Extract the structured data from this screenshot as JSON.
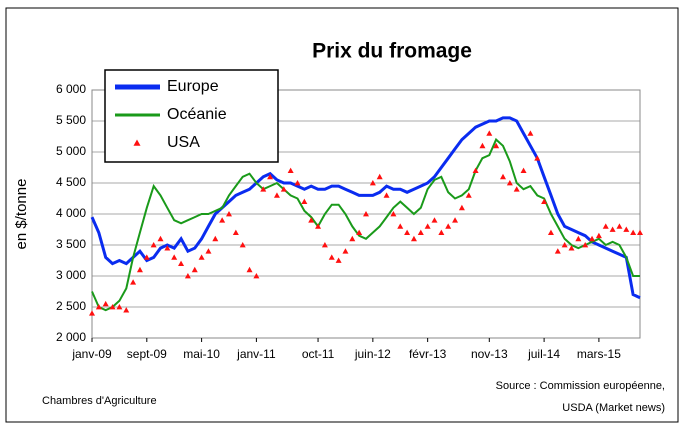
{
  "chart_data": {
    "type": "line",
    "title": "Prix du fromage",
    "ylabel": "en $/tonne",
    "footer_left": "Chambres d'Agriculture",
    "source": [
      "Source : Commission européenne,",
      "USDA (Market news)"
    ],
    "categories": [
      "janv-09",
      null,
      null,
      null,
      null,
      null,
      null,
      null,
      "sept-09",
      null,
      null,
      null,
      null,
      null,
      null,
      null,
      "mai-10",
      null,
      null,
      null,
      null,
      null,
      null,
      null,
      "janv-11",
      null,
      null,
      null,
      null,
      null,
      null,
      null,
      null,
      "oct-11",
      null,
      null,
      null,
      null,
      null,
      null,
      null,
      "juin-12",
      null,
      null,
      null,
      null,
      null,
      null,
      null,
      "févr-13",
      null,
      null,
      null,
      null,
      null,
      null,
      null,
      null,
      "nov-13",
      null,
      null,
      null,
      null,
      null,
      null,
      null,
      "juil-14",
      null,
      null,
      null,
      null,
      null,
      null,
      null,
      "mars-15",
      null,
      null,
      null,
      null,
      null,
      null
    ],
    "series": [
      {
        "name": "Europe",
        "color": "#0a2cf0",
        "style": "line",
        "values": [
          3950,
          3700,
          3300,
          3200,
          3250,
          3200,
          3300,
          3400,
          3250,
          3300,
          3450,
          3500,
          3450,
          3600,
          3400,
          3450,
          3600,
          3800,
          4000,
          4100,
          4200,
          4300,
          4350,
          4400,
          4500,
          4600,
          4650,
          4550,
          4500,
          4500,
          4450,
          4400,
          4450,
          4400,
          4400,
          4450,
          4450,
          4400,
          4350,
          4300,
          4300,
          4300,
          4350,
          4450,
          4400,
          4400,
          4350,
          4400,
          4450,
          4500,
          4600,
          4750,
          4900,
          5050,
          5200,
          5300,
          5400,
          5450,
          5500,
          5500,
          5550,
          5550,
          5500,
          5300,
          5100,
          4900,
          4600,
          4300,
          4000,
          3800,
          3750,
          3700,
          3650,
          3550,
          3500,
          3450,
          3400,
          3350,
          3300,
          2700,
          2650
        ]
      },
      {
        "name": "Océanie",
        "color": "#1a9a1a",
        "style": "line",
        "values": [
          2750,
          2500,
          2450,
          2500,
          2600,
          2800,
          3300,
          3700,
          4100,
          4450,
          4300,
          4100,
          3900,
          3850,
          3900,
          3950,
          4000,
          4000,
          4050,
          4100,
          4300,
          4450,
          4600,
          4650,
          4500,
          4400,
          4450,
          4500,
          4400,
          4300,
          4250,
          4050,
          3950,
          3800,
          4000,
          4150,
          4150,
          4000,
          3800,
          3650,
          3600,
          3700,
          3800,
          3950,
          4100,
          4200,
          4100,
          4000,
          4100,
          4400,
          4550,
          4600,
          4350,
          4250,
          4300,
          4400,
          4700,
          4900,
          4950,
          5200,
          5100,
          4850,
          4500,
          4400,
          4450,
          4300,
          4250,
          4000,
          3800,
          3600,
          3500,
          3450,
          3500,
          3550,
          3600,
          3500,
          3550,
          3500,
          3300,
          3000,
          3000
        ]
      },
      {
        "name": "USA",
        "color": "#ff1010",
        "style": "triangles",
        "values": [
          2400,
          2500,
          2550,
          2500,
          2500,
          2450,
          2900,
          3100,
          3300,
          3500,
          3600,
          3450,
          3300,
          3200,
          3000,
          3100,
          3300,
          3400,
          3600,
          3900,
          4000,
          3700,
          3500,
          3100,
          3000,
          4400,
          4600,
          4300,
          4400,
          4700,
          4500,
          4200,
          3900,
          3800,
          3500,
          3300,
          3250,
          3400,
          3600,
          3700,
          4000,
          4500,
          4600,
          4300,
          4000,
          3800,
          3700,
          3600,
          3700,
          3800,
          3900,
          3700,
          3800,
          3900,
          4100,
          4300,
          4700,
          5100,
          5300,
          5100,
          4600,
          4500,
          4400,
          4700,
          5300,
          4900,
          4200,
          3700,
          3400,
          3500,
          3450,
          3600,
          3500,
          3600,
          3650,
          3800,
          3750,
          3800,
          3750,
          3700,
          3700
        ]
      }
    ],
    "ylim": [
      2000,
      6000
    ],
    "yticks": [
      {
        "value": 2000,
        "label": "2 000"
      },
      {
        "value": 2500,
        "label": "2 500"
      },
      {
        "value": 3000,
        "label": "3 000"
      },
      {
        "value": 3500,
        "label": "3 500"
      },
      {
        "value": 4000,
        "label": "4 000"
      },
      {
        "value": 4500,
        "label": "4 500"
      },
      {
        "value": 5000,
        "label": "5 000"
      },
      {
        "value": 5500,
        "label": "5 500"
      },
      {
        "value": 6000,
        "label": "6 000"
      }
    ],
    "grid": true,
    "legend": "upper left"
  }
}
